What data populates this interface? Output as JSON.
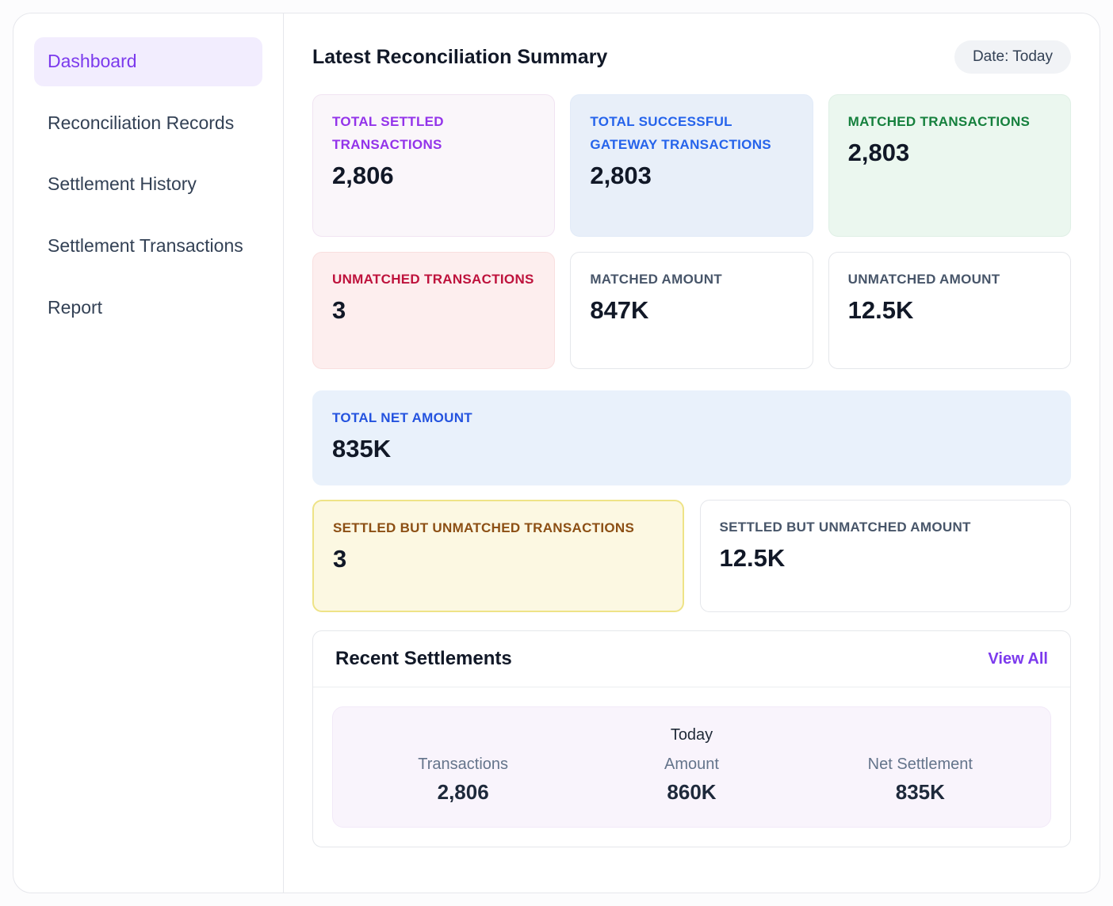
{
  "sidebar": {
    "items": [
      {
        "label": "Dashboard",
        "active": true
      },
      {
        "label": "Reconciliation Records",
        "active": false
      },
      {
        "label": "Settlement History",
        "active": false
      },
      {
        "label": "Settlement Transactions",
        "active": false
      },
      {
        "label": "Report",
        "active": false
      }
    ]
  },
  "header": {
    "title": "Latest Reconciliation Summary",
    "date_badge": "Date: Today"
  },
  "cards": {
    "total_settled": {
      "label": "TOTAL SETTLED TRANSACTIONS",
      "value": "2,806",
      "label_color": "#9333ea",
      "bg": "#faf6fa"
    },
    "total_gateway": {
      "label": "TOTAL SUCCESSFUL GATEWAY TRANSACTIONS",
      "value": "2,803",
      "label_color": "#2563eb",
      "bg": "#e8eff9"
    },
    "matched_transactions": {
      "label": "MATCHED TRANSACTIONS",
      "value": "2,803",
      "label_color": "#15803d",
      "bg": "#ebf7ef"
    },
    "unmatched_transactions": {
      "label": "UNMATCHED TRANSACTIONS",
      "value": "3",
      "label_color": "#be123c",
      "bg": "#fdeeee"
    },
    "matched_amount": {
      "label": "MATCHED AMOUNT",
      "value": "847K",
      "label_color": "#475569",
      "bg": "#ffffff"
    },
    "unmatched_amount": {
      "label": "UNMATCHED AMOUNT",
      "value": "12.5K",
      "label_color": "#475569",
      "bg": "#ffffff"
    },
    "total_net_amount": {
      "label": "TOTAL NET AMOUNT",
      "value": "835K",
      "label_color": "#2453df",
      "bg": "#e9f1fb"
    },
    "settled_but_unmatched_transactions": {
      "label": "SETTLED BUT UNMATCHED TRANSACTIONS",
      "value": "3",
      "label_color": "#8c4f14",
      "bg": "#fcf8e2"
    },
    "settled_but_unmatched_amount": {
      "label": "SETTLED BUT UNMATCHED AMOUNT",
      "value": "12.5K",
      "label_color": "#475569",
      "bg": "#ffffff"
    }
  },
  "recent_settlements": {
    "title": "Recent Settlements",
    "view_all_label": "View All",
    "period": "Today",
    "stats": [
      {
        "label": "Transactions",
        "value": "2,806"
      },
      {
        "label": "Amount",
        "value": "860K"
      },
      {
        "label": "Net Settlement",
        "value": "835K"
      }
    ]
  },
  "colors": {
    "accent_purple": "#7c3aed",
    "value_text": "#111827",
    "sidebar_text": "#334155",
    "active_item_bg": "#f2edfe",
    "border": "#e5e7eb"
  }
}
